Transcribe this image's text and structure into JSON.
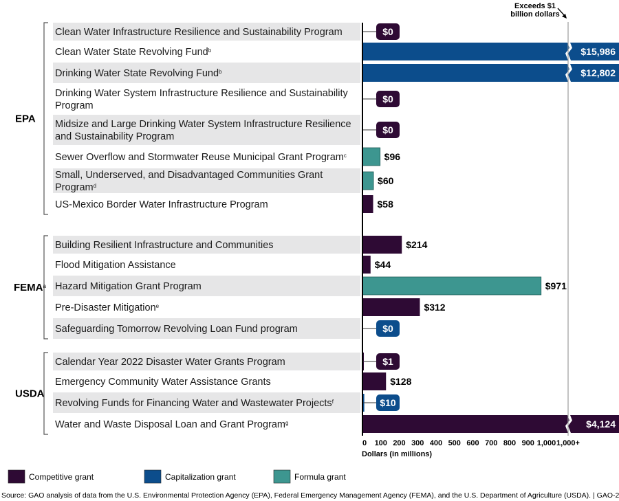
{
  "chart_data": {
    "type": "bar",
    "orientation": "horizontal",
    "xlabel": "Dollars (in millions)",
    "xticks": [
      "0",
      "100",
      "200",
      "300",
      "400",
      "500",
      "600",
      "700",
      "800",
      "900",
      "1,000",
      "1,000+"
    ],
    "xlim": [
      0,
      1000
    ],
    "break_note": [
      "Exceeds $1",
      "billion dollars"
    ],
    "colors": {
      "Competitive grant": "#2e0a34",
      "Capitalization grant": "#0c4d8c",
      "Formula grant": "#3d9690"
    },
    "legend": [
      {
        "name": "Competitive grant",
        "color": "#2e0a34"
      },
      {
        "name": "Capitalization grant",
        "color": "#0c4d8c"
      },
      {
        "name": "Formula grant",
        "color": "#3d9690"
      }
    ],
    "groups": [
      {
        "agency": "EPA",
        "sup": "",
        "rows": [
          {
            "label": [
              "Clean Water Infrastructure Resilience and Sustainability Program"
            ],
            "sup": "",
            "value": 0,
            "display": "$0",
            "type": "Competitive grant"
          },
          {
            "label": [
              "Clean Water State Revolving Fund"
            ],
            "sup": "b",
            "value": 15986,
            "display": "$15,986",
            "type": "Capitalization grant"
          },
          {
            "label": [
              "Drinking Water State Revolving Fund"
            ],
            "sup": "b",
            "value": 12802,
            "display": "$12,802",
            "type": "Capitalization grant"
          },
          {
            "label": [
              "Drinking Water System Infrastructure Resilience and Sustainability",
              "Program"
            ],
            "sup": "",
            "value": 0,
            "display": "$0",
            "type": "Competitive grant"
          },
          {
            "label": [
              "Midsize and Large Drinking Water System Infrastructure Resilience",
              "and Sustainability Program"
            ],
            "sup": "",
            "value": 0,
            "display": "$0",
            "type": "Competitive grant"
          },
          {
            "label": [
              "Sewer Overflow and Stormwater Reuse Municipal Grant Program"
            ],
            "sup": "c",
            "value": 96,
            "display": "$96",
            "type": "Formula grant"
          },
          {
            "label": [
              "Small, Underserved, and Disadvantaged Communities Grant",
              "Program"
            ],
            "sup": "d",
            "value": 60,
            "display": "$60",
            "type": "Formula grant"
          },
          {
            "label": [
              "US-Mexico Border Water Infrastructure Program"
            ],
            "sup": "",
            "value": 58,
            "display": "$58",
            "type": "Competitive grant"
          }
        ]
      },
      {
        "agency": "FEMA",
        "sup": "a",
        "rows": [
          {
            "label": [
              "Building Resilient Infrastructure and Communities"
            ],
            "sup": "",
            "value": 214,
            "display": "$214",
            "type": "Competitive grant"
          },
          {
            "label": [
              "Flood Mitigation Assistance"
            ],
            "sup": "",
            "value": 44,
            "display": "$44",
            "type": "Competitive grant"
          },
          {
            "label": [
              "Hazard Mitigation Grant Program"
            ],
            "sup": "",
            "value": 971,
            "display": "$971",
            "type": "Formula grant"
          },
          {
            "label": [
              "Pre-Disaster Mitigation"
            ],
            "sup": "e",
            "value": 312,
            "display": "$312",
            "type": "Competitive grant"
          },
          {
            "label": [
              "Safeguarding Tomorrow Revolving Loan Fund program"
            ],
            "sup": "",
            "value": 0,
            "display": "$0",
            "type": "Capitalization grant"
          }
        ]
      },
      {
        "agency": "USDA",
        "sup": "",
        "rows": [
          {
            "label": [
              "Calendar Year 2022 Disaster Water Grants Program"
            ],
            "sup": "",
            "value": 1,
            "display": "$1",
            "type": "Competitive grant"
          },
          {
            "label": [
              "Emergency Community Water Assistance Grants"
            ],
            "sup": "",
            "value": 128,
            "display": "$128",
            "type": "Competitive grant"
          },
          {
            "label": [
              "Revolving Funds for Financing Water and Wastewater Projects"
            ],
            "sup": "f",
            "value": 10,
            "display": "$10",
            "type": "Capitalization grant"
          },
          {
            "label": [
              "Water and Waste Disposal Loan and Grant Program"
            ],
            "sup": "g",
            "value": 4124,
            "display": "$4,124",
            "type": "Competitive grant"
          }
        ]
      }
    ]
  },
  "source": "Source: GAO analysis of data from the U.S. Environmental Protection Agency (EPA), Federal Emergency Management Agency (FEMA), and the U.S. Department of Agriculture (USDA).  |  GAO-25-107013"
}
